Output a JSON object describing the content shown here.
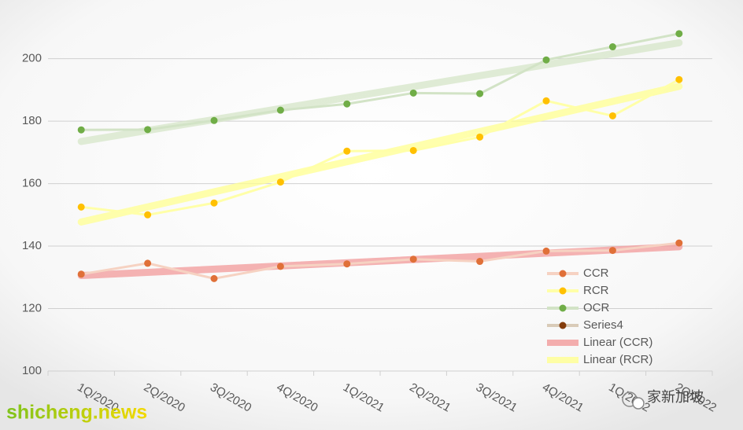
{
  "chart_data": {
    "type": "line",
    "categories": [
      "1Q/2020",
      "2Q/2020",
      "3Q/2020",
      "4Q/2020",
      "1Q/2021",
      "2Q/2021",
      "3Q/2021",
      "4Q/2021",
      "1Q/2022",
      "2Q/2022"
    ],
    "series": [
      {
        "name": "CCR",
        "color": "#e07038",
        "line_color": "#f6d2c2",
        "values": [
          131,
          134.5,
          129.6,
          133.5,
          134.3,
          135.8,
          135.1,
          138.4,
          138.6,
          141
        ]
      },
      {
        "name": "RCR",
        "color": "#ffc000",
        "line_color": "#ffffa8",
        "values": [
          152.5,
          150,
          153.8,
          160.5,
          170.4,
          170.6,
          174.9,
          186.5,
          181.7,
          193.3
        ]
      },
      {
        "name": "OCR",
        "color": "#70ad47",
        "line_color": "#d2e3c6",
        "values": [
          177.2,
          177.3,
          180.2,
          183.5,
          185.5,
          189,
          188.8,
          199.6,
          203.8,
          208
        ]
      },
      {
        "name": "Series4",
        "color": "#843c0c",
        "line_color": "#d9cbb8",
        "values": [
          null,
          null,
          null,
          null,
          null,
          null,
          null,
          null,
          null,
          null
        ]
      }
    ],
    "trendlines": [
      {
        "name": "Linear (CCR)",
        "series": 0,
        "color": "#f19a9a"
      },
      {
        "name": "Linear (RCR)",
        "series": 1,
        "color": "#ffff90"
      },
      {
        "series": 2,
        "color": "#d5e6c8"
      }
    ],
    "ylim": [
      100,
      215
    ],
    "yticks": [
      100,
      120,
      140,
      160,
      180,
      200
    ],
    "grid": true,
    "legend": "right",
    "watermarks": [
      "shicheng.news",
      "家新加坡"
    ]
  }
}
